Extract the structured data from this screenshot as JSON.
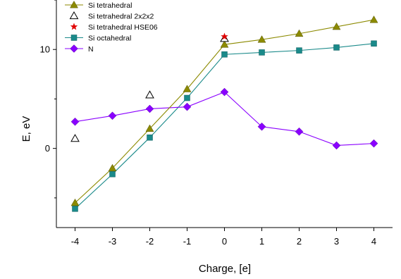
{
  "chart_data": {
    "type": "line",
    "xlabel": "Charge, [e]",
    "ylabel": "E, eV",
    "xlim": [
      -4.5,
      4.5
    ],
    "ylim": [
      -8,
      15
    ],
    "xticks": [
      -4,
      -3,
      -2,
      -1,
      0,
      1,
      2,
      3,
      4
    ],
    "yticks": [
      0,
      10
    ],
    "legend_position": "top-left",
    "series": [
      {
        "name": "Si tetrahedral",
        "color": "#8c8a00",
        "marker": "triangle",
        "connected": true,
        "x": [
          -4,
          -3,
          -2,
          -1,
          0,
          1,
          2,
          3,
          4
        ],
        "y": [
          -5.5,
          -2.0,
          2.0,
          6.0,
          10.5,
          11.0,
          11.6,
          12.3,
          13.0
        ]
      },
      {
        "name": "Si tetrahedral 2x2x2",
        "color": "#000000",
        "marker": "open-triangle",
        "connected": false,
        "x": [
          -4,
          -2,
          0
        ],
        "y": [
          1.0,
          5.4,
          11.1
        ]
      },
      {
        "name": "Si tetrahedral HSE06",
        "color": "#e00000",
        "marker": "star",
        "connected": false,
        "x": [
          0
        ],
        "y": [
          11.3
        ]
      },
      {
        "name": "Si octahedral",
        "color": "#1a8a8a",
        "marker": "square",
        "connected": true,
        "x": [
          -4,
          -3,
          -2,
          -1,
          0,
          1,
          2,
          3,
          4
        ],
        "y": [
          -6.1,
          -2.6,
          1.1,
          5.1,
          9.5,
          9.7,
          9.9,
          10.2,
          10.6
        ]
      },
      {
        "name": "N",
        "color": "#8a00ff",
        "marker": "diamond",
        "connected": true,
        "x": [
          -4,
          -3,
          -2,
          -1,
          0,
          1,
          2,
          3,
          4
        ],
        "y": [
          2.7,
          3.3,
          4.0,
          4.2,
          5.7,
          2.2,
          1.7,
          0.3,
          0.5
        ]
      }
    ]
  }
}
